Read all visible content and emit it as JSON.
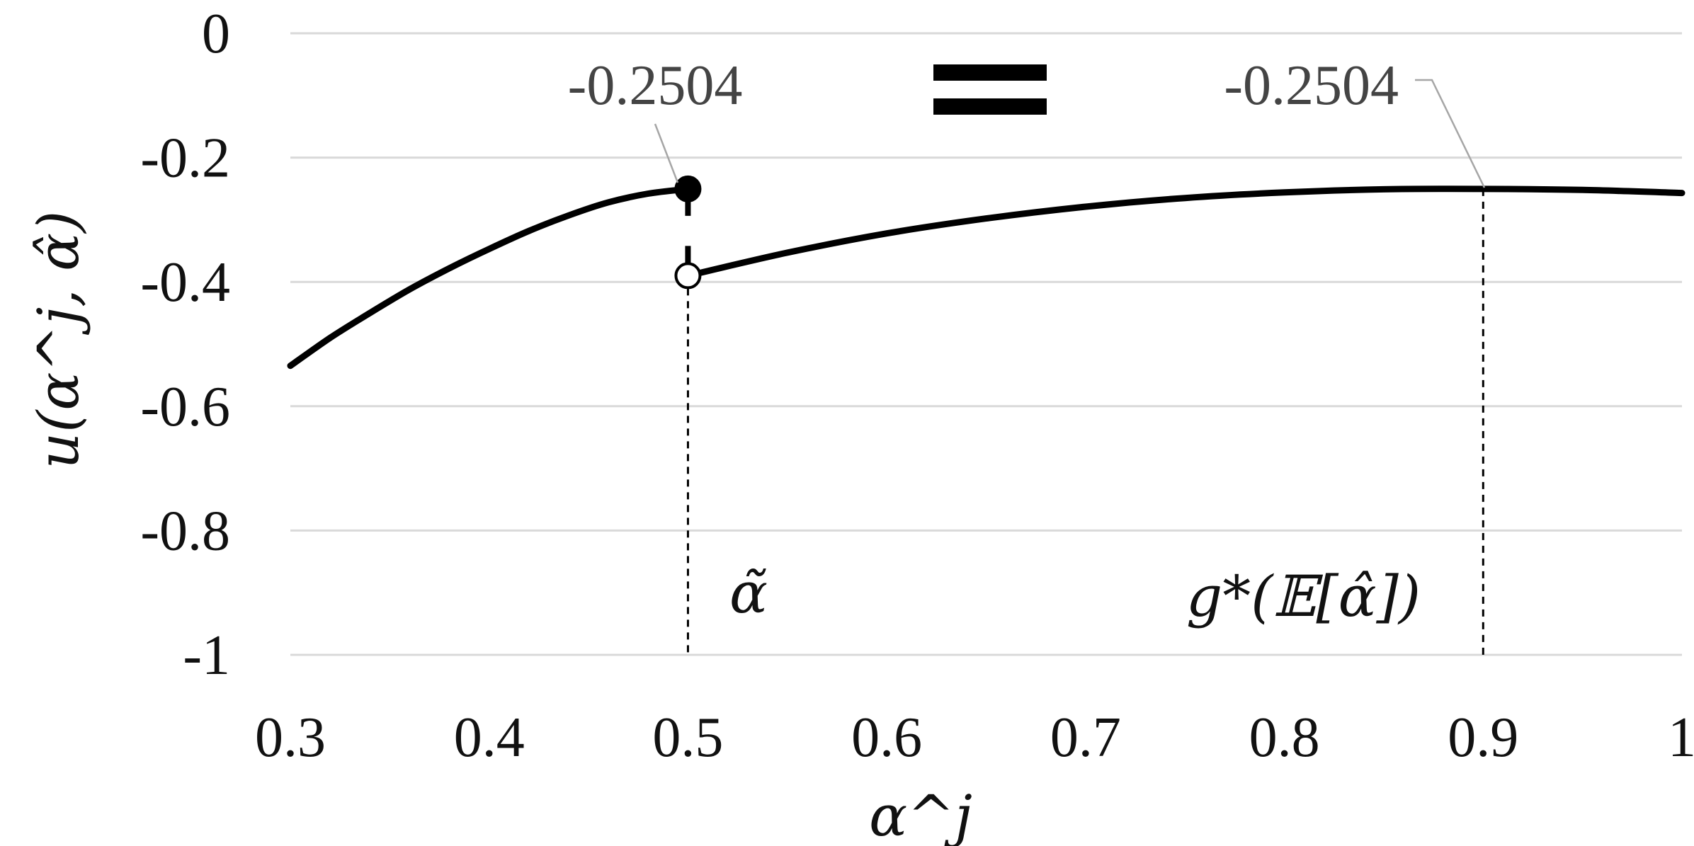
{
  "chart_data": {
    "type": "line",
    "title": "",
    "xlabel": "α^j",
    "ylabel": "u(α^j, α̂)",
    "xlim": [
      0.3,
      1.0
    ],
    "ylim": [
      -1.0,
      0.0
    ],
    "grid": true,
    "x_tick_labels": [
      "0.3",
      "0.4",
      "0.5",
      "0.6",
      "0.7",
      "0.8",
      "0.9",
      "1"
    ],
    "y_tick_labels": [
      "0",
      "-0.2",
      "-0.4",
      "-0.6",
      "-0.8",
      "-1"
    ],
    "series": [
      {
        "segment": "left",
        "x": [
          0.3,
          0.32,
          0.34,
          0.36,
          0.38,
          0.4,
          0.42,
          0.44,
          0.46,
          0.48,
          0.5
        ],
        "y": [
          -0.535,
          -0.49,
          -0.45,
          -0.412,
          -0.378,
          -0.347,
          -0.318,
          -0.293,
          -0.272,
          -0.258,
          -0.2504
        ]
      },
      {
        "segment": "right",
        "x": [
          0.5,
          0.55,
          0.6,
          0.65,
          0.7,
          0.75,
          0.8,
          0.85,
          0.9,
          0.95,
          1.0
        ],
        "y": [
          -0.39,
          -0.353,
          -0.322,
          -0.298,
          -0.279,
          -0.265,
          -0.256,
          -0.251,
          -0.2504,
          -0.252,
          -0.257
        ]
      }
    ],
    "markers": [
      {
        "type": "filled",
        "x": 0.5,
        "y": -0.2504
      },
      {
        "type": "open",
        "x": 0.5,
        "y": -0.39
      }
    ],
    "vertical_lines": [
      {
        "x": 0.5,
        "y_top": -0.39,
        "label": "α̃"
      },
      {
        "x": 0.9,
        "y_top": -0.2504,
        "label": "g*(𝔼[α̂])"
      }
    ],
    "annotations": [
      {
        "text": "-0.2504",
        "target_x": 0.5,
        "target_y": -0.2504
      },
      {
        "text": "-0.2504",
        "target_x": 0.9,
        "target_y": -0.2504
      }
    ],
    "equals_symbol": "="
  }
}
